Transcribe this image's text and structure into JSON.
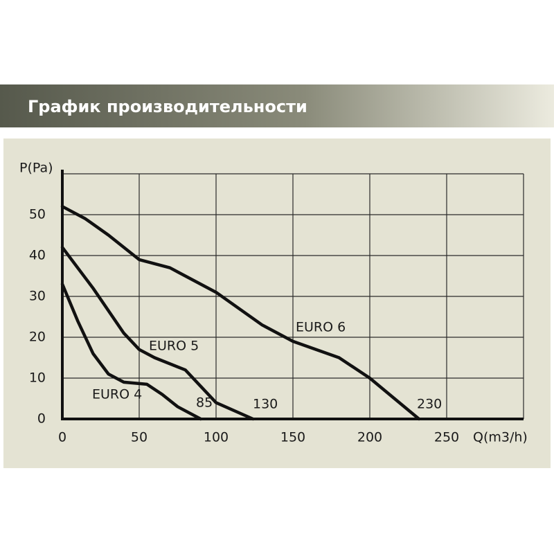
{
  "title": "График  производительности",
  "chart_data": {
    "type": "line",
    "x_label": "Q(m3/h)",
    "y_label": "P(Pa)",
    "xlim": [
      0,
      300
    ],
    "ylim": [
      0,
      60
    ],
    "xticks": [
      0,
      50,
      100,
      150,
      200,
      250
    ],
    "yticks": [
      0,
      10,
      20,
      30,
      40,
      50
    ],
    "grid": true,
    "series": [
      {
        "name": "EURO 6",
        "color": "#111111",
        "annotation": "230",
        "x": [
          0,
          15,
          30,
          50,
          60,
          70,
          100,
          130,
          150,
          180,
          200,
          232
        ],
        "values": [
          52,
          49,
          45,
          39,
          38,
          37,
          31,
          23,
          19,
          15,
          10,
          0
        ]
      },
      {
        "name": "EURO 5",
        "color": "#111111",
        "annotation": "130",
        "x": [
          0,
          20,
          40,
          50,
          60,
          80,
          90,
          100,
          124
        ],
        "values": [
          42,
          32,
          21,
          17,
          15,
          12,
          8,
          4,
          0
        ]
      },
      {
        "name": "EURO 4",
        "color": "#111111",
        "annotation": "85",
        "x": [
          0,
          10,
          20,
          30,
          40,
          55,
          65,
          75,
          90
        ],
        "values": [
          33,
          24,
          16,
          11,
          9,
          8.5,
          6,
          3,
          0
        ]
      }
    ]
  }
}
